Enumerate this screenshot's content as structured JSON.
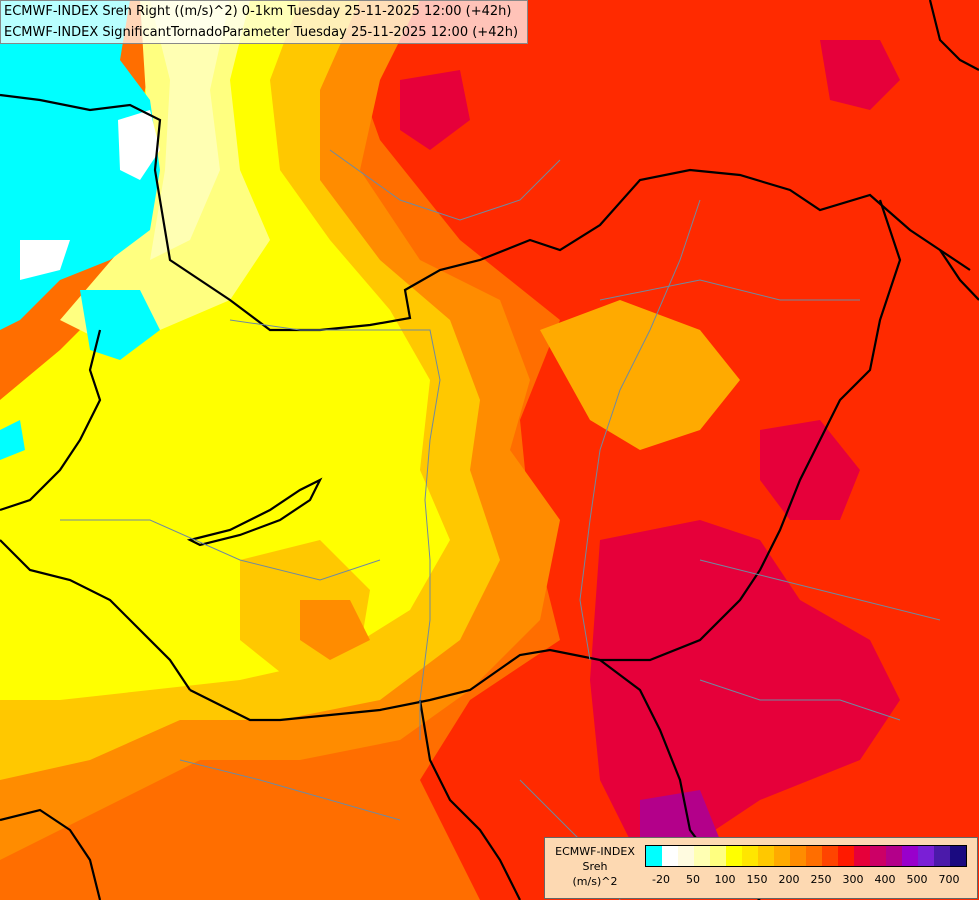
{
  "header": {
    "line1": "ECMWF-INDEX Sreh Right ((m/s)^2) 0-1km Tuesday 25-11-2025 12:00 (+42h)",
    "line2": "ECMWF-INDEX SignificantTornadoParameter Tuesday 25-11-2025 12:00 (+42h)"
  },
  "legend": {
    "line1": "ECMWF-INDEX",
    "line2": "Sreh",
    "line3": "(m/s)^2",
    "colors": [
      "#00ffff",
      "#ffffff",
      "#fffbe0",
      "#ffffb3",
      "#ffff80",
      "#ffff00",
      "#ffe600",
      "#ffc800",
      "#ffaa00",
      "#ff8c00",
      "#ff6e00",
      "#ff4400",
      "#ff1a00",
      "#e6003a",
      "#cc0066",
      "#b3008a",
      "#9900cc",
      "#7a1fd6",
      "#4b1aaa",
      "#1a0a80"
    ],
    "ticks": [
      "-20",
      "50",
      "100",
      "150",
      "200",
      "250",
      "300",
      "400",
      "500",
      "700"
    ]
  },
  "icons": {
    "map": "weather-map",
    "borders": "country-border-lines"
  }
}
